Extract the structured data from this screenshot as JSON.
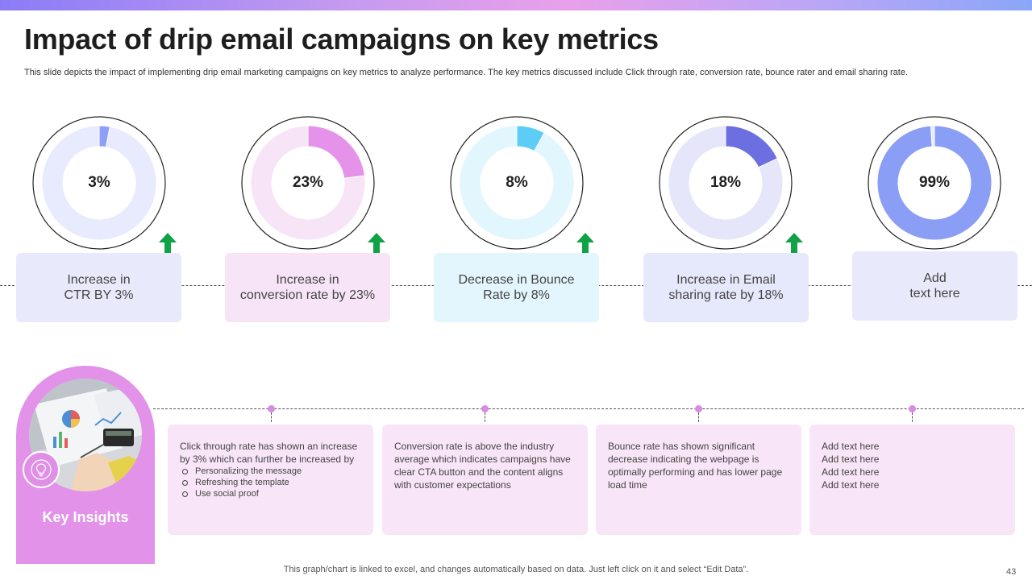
{
  "title": "Impact of drip email campaigns on key metrics",
  "subtitle": "This slide depicts the impact of implementing drip email marketing campaigns on key metrics to analyze performance. The key metrics discussed include Click through rate, conversion rate, bounce rater and email sharing rate.",
  "chart_data": [
    {
      "type": "pie",
      "subtype": "donut",
      "value_label": "3%",
      "values": [
        3,
        97
      ],
      "colors": [
        "#8e9ff7",
        "#e8eafd"
      ]
    },
    {
      "type": "pie",
      "subtype": "donut",
      "value_label": "23%",
      "values": [
        23,
        77
      ],
      "colors": [
        "#e592ea",
        "#f7e4f7"
      ]
    },
    {
      "type": "pie",
      "subtype": "donut",
      "value_label": "8%",
      "values": [
        8,
        92
      ],
      "colors": [
        "#5ecdf5",
        "#e2f6fd"
      ]
    },
    {
      "type": "pie",
      "subtype": "donut",
      "value_label": "18%",
      "values": [
        18,
        82
      ],
      "colors": [
        "#6b6fe0",
        "#e5e6fa"
      ]
    },
    {
      "type": "pie",
      "subtype": "donut",
      "value_label": "99%",
      "values": [
        99,
        1
      ],
      "colors": [
        "#8b9ef6",
        "#e8eafd"
      ]
    }
  ],
  "metrics": [
    {
      "label": "Increase in\nCTR BY 3%",
      "bg": "#e8eafc",
      "arrow": "up"
    },
    {
      "label": "Increase in\nconversion rate by 23%",
      "bg": "#f8e4f7",
      "arrow": "up"
    },
    {
      "label": "Decrease in Bounce\nRate by 8%",
      "bg": "#e3f5fd",
      "arrow": "up"
    },
    {
      "label": "Increase in Email\nsharing rate by 18%",
      "bg": "#e6e8fc",
      "arrow": "up"
    },
    {
      "label": "Add\ntext here",
      "bg": "#e8eafc",
      "arrow": "none"
    }
  ],
  "arrow_color": "#0fa346",
  "key_insights": {
    "title": "Key Insights",
    "panel_color": "#e292e9",
    "icon": "lightbulb-icon"
  },
  "insights": [
    {
      "text": "Click through rate has shown an increase by 3% which can further be increased by",
      "bullets": [
        "Personalizing the message",
        "Refreshing the template",
        "Use social proof"
      ]
    },
    {
      "text": "Conversion rate is above the industry average which indicates campaigns have clear CTA button and the content aligns with customer expectations",
      "bullets": []
    },
    {
      "text": "Bounce rate has shown significant decrease indicating the webpage is optimally performing and has lower page load time",
      "bullets": []
    },
    {
      "text": "Add text here\nAdd text here\nAdd text here\nAdd text here",
      "bullets": []
    }
  ],
  "footer": "This graph/chart is linked to excel, and changes automatically based on data. Just left click on it and select “Edit Data”.",
  "page_number": "43"
}
